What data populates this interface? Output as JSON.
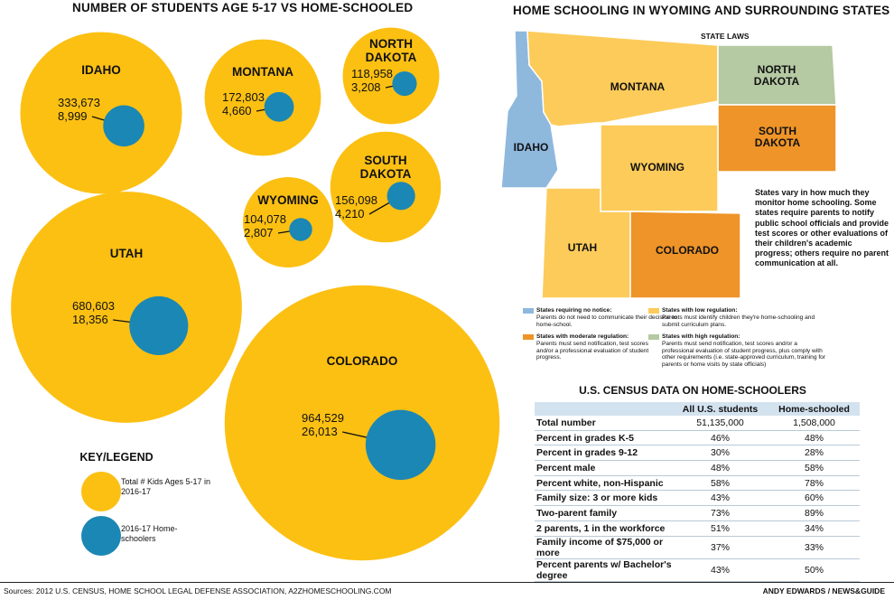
{
  "header": {
    "left_title": "NUMBER OF STUDENTS AGE 5-17 VS HOME-SCHOOLED",
    "right_title": "HOME SCHOOLING IN WYOMING AND SURROUNDING STATES"
  },
  "chart_data": [
    {
      "type": "bubble",
      "title": "NUMBER OF STUDENTS AGE 5-17 VS HOME-SCHOOLED",
      "series": [
        {
          "name": "Total # Kids Ages 5-17 in 2016-17",
          "color": "#FCC013"
        },
        {
          "name": "2016-17 Home-schoolers",
          "color": "#1B87B4"
        }
      ],
      "states": [
        {
          "name": "IDAHO",
          "total": 333673,
          "homeschool": 8999,
          "total_label": "333,673",
          "home_label": "8,999"
        },
        {
          "name": "MONTANA",
          "total": 172803,
          "homeschool": 4660,
          "total_label": "172,803",
          "home_label": "4,660"
        },
        {
          "name": "NORTH DAKOTA",
          "total": 118958,
          "homeschool": 3208,
          "total_label": "118,958",
          "home_label": "3,208"
        },
        {
          "name": "SOUTH DAKOTA",
          "total": 156098,
          "homeschool": 4210,
          "total_label": "156,098",
          "home_label": "4,210"
        },
        {
          "name": "WYOMING",
          "total": 104078,
          "homeschool": 2807,
          "total_label": "104,078",
          "home_label": "2,807"
        },
        {
          "name": "UTAH",
          "total": 680603,
          "homeschool": 18356,
          "total_label": "680,603",
          "home_label": "18,356"
        },
        {
          "name": "COLORADO",
          "total": 964529,
          "homeschool": 26013,
          "total_label": "964,529",
          "home_label": "26,013"
        }
      ]
    },
    {
      "type": "table",
      "title": "U.S. CENSUS DATA ON HOME-SCHOOLERS",
      "columns": [
        "",
        "All U.S. students",
        "Home-schooled"
      ],
      "rows": [
        {
          "label": "Total number",
          "all": "51,135,000",
          "home": "1,508,000"
        },
        {
          "label": "Percent in grades K-5",
          "all": "46%",
          "home": "48%"
        },
        {
          "label": "Percent in grades 9-12",
          "all": "30%",
          "home": "28%"
        },
        {
          "label": "Percent male",
          "all": "48%",
          "home": "58%"
        },
        {
          "label": "Percent white, non-Hispanic",
          "all": "58%",
          "home": "78%"
        },
        {
          "label": "Family size: 3 or more kids",
          "all": "43%",
          "home": "60%"
        },
        {
          "label": "Two-parent family",
          "all": "73%",
          "home": "89%"
        },
        {
          "label": "2 parents, 1 in the workforce",
          "all": "51%",
          "home": "34%"
        },
        {
          "label": "Family income of $75,000 or more",
          "all": "37%",
          "home": "33%"
        },
        {
          "label": "Percent parents w/ Bachelor's degree",
          "all": "43%",
          "home": "50%"
        }
      ]
    }
  ],
  "key": {
    "title": "KEY/LEGEND",
    "total_label": "Total # Kids Ages 5-17 in 2016-17",
    "home_label": "2016-17 Home-schoolers"
  },
  "map": {
    "subtitle": "STATE LAWS",
    "note": "States vary in how much they monitor home schooling. Some states require parents to notify public school officials and provide test scores or other evaluations of their children's academic progress; others require no parent communication at all.",
    "colors": {
      "no_notice": "#8FB8DD",
      "low": "#FCCB5A",
      "moderate": "#EE9428",
      "high": "#B5C9A2"
    },
    "states": {
      "idaho": "IDAHO",
      "montana": "MONTANA",
      "north_dakota": [
        "NORTH",
        "DAKOTA"
      ],
      "south_dakota": [
        "SOUTH",
        "DAKOTA"
      ],
      "wyoming": "WYOMING",
      "utah": "UTAH",
      "colorado": "COLORADO"
    },
    "legend": {
      "no_notice_title": "States requiring no notice:",
      "no_notice_desc": "Parents do not need to communicate their decision to home-school.",
      "low_title": "States with low regulation:",
      "low_desc": "Parents must identify children they're home-schooling and submit curriculum plans.",
      "moderate_title": "States with moderate regulation:",
      "moderate_desc": "Parents must send notification, test scores and/or a professional evaluation of student progress.",
      "high_title": "States with high regulation:",
      "high_desc": "Parents must send notification, test scores and/or a professional evaluation of student progress, plus comply with other requirements (i.e. state-approved curriculum, training for parents or home visits by state officials)"
    }
  },
  "footer": {
    "sources": "Sources: 2012 U.S. CENSUS, HOME SCHOOL LEGAL DEFENSE ASSOCIATION, A2ZHOMESCHOOLING.COM",
    "credit": "ANDY EDWARDS / NEWS&GUIDE"
  }
}
